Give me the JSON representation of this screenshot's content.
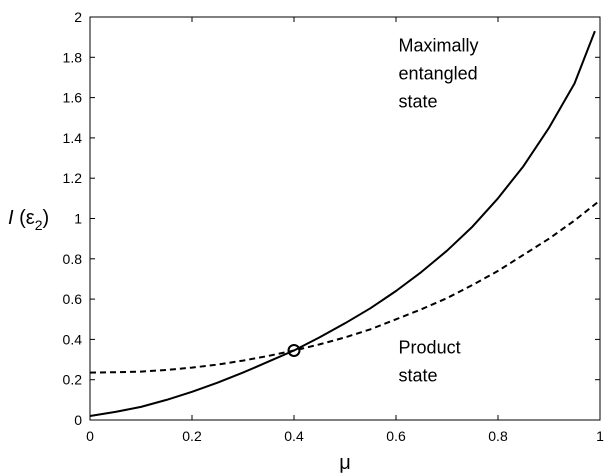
{
  "chart_data": {
    "type": "line",
    "title": "",
    "xlabel": "μ",
    "ylabel": {
      "italic": "I",
      "main": " (ε",
      "subscript": "2",
      "close": ")"
    },
    "xlim": [
      0,
      1
    ],
    "ylim": [
      0,
      2
    ],
    "xticks": [
      0,
      0.2,
      0.4,
      0.6,
      0.8,
      1
    ],
    "yticks": [
      0,
      0.2,
      0.4,
      0.6,
      0.8,
      1,
      1.2,
      1.4,
      1.6,
      1.8,
      2
    ],
    "grid": false,
    "series": [
      {
        "style": "solid",
        "color": "#000000",
        "x": [
          0.0,
          0.05,
          0.1,
          0.15,
          0.2,
          0.25,
          0.3,
          0.35,
          0.4,
          0.45,
          0.5,
          0.55,
          0.6,
          0.65,
          0.7,
          0.75,
          0.8,
          0.85,
          0.9,
          0.95,
          0.99
        ],
        "y": [
          0.02,
          0.04,
          0.065,
          0.1,
          0.14,
          0.185,
          0.235,
          0.29,
          0.345,
          0.41,
          0.48,
          0.555,
          0.64,
          0.735,
          0.84,
          0.96,
          1.1,
          1.26,
          1.45,
          1.67,
          1.93
        ]
      },
      {
        "style": "dashed",
        "color": "#000000",
        "x": [
          0.0,
          0.05,
          0.1,
          0.15,
          0.2,
          0.25,
          0.3,
          0.35,
          0.4,
          0.45,
          0.5,
          0.55,
          0.6,
          0.65,
          0.7,
          0.75,
          0.8,
          0.85,
          0.9,
          0.95,
          1.0
        ],
        "y": [
          0.235,
          0.237,
          0.24,
          0.248,
          0.26,
          0.275,
          0.295,
          0.318,
          0.345,
          0.375,
          0.41,
          0.45,
          0.5,
          0.55,
          0.605,
          0.67,
          0.74,
          0.82,
          0.9,
          0.99,
          1.09
        ]
      }
    ],
    "marker": {
      "x": 0.4,
      "y": 0.345,
      "shape": "circle"
    },
    "annotations": [
      {
        "lines": [
          "Maximally",
          "entangled",
          "state"
        ],
        "x": 0.605,
        "y": 1.83
      },
      {
        "lines": [
          "Product",
          "state"
        ],
        "x": 0.605,
        "y": 0.33
      }
    ]
  }
}
